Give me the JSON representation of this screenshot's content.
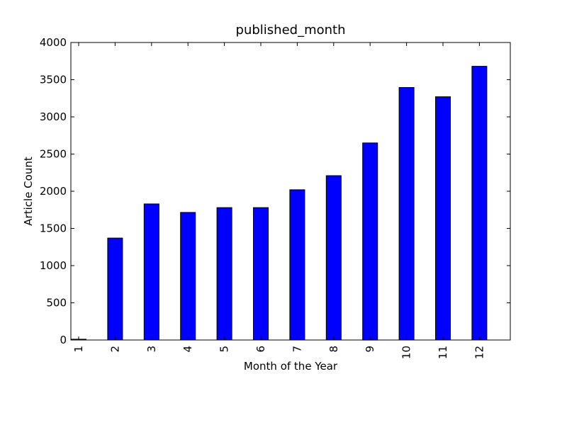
{
  "chart_data": {
    "type": "bar",
    "title": "published_month",
    "xlabel": "Month of the Year",
    "ylabel": "Article Count",
    "categories": [
      "1",
      "2",
      "3",
      "4",
      "5",
      "6",
      "7",
      "8",
      "9",
      "10",
      "11",
      "12"
    ],
    "values": [
      10,
      1370,
      1830,
      1715,
      1780,
      1780,
      2020,
      2210,
      2650,
      3395,
      3270,
      3680
    ],
    "ylim": [
      0,
      4000
    ],
    "yticks": [
      "0",
      "500",
      "1000",
      "1500",
      "2000",
      "2500",
      "3000",
      "3500",
      "4000"
    ],
    "grid": false,
    "legend": "none",
    "colors": {
      "bar": "#0000ff",
      "edge": "#000000",
      "axes": "#000000"
    }
  }
}
